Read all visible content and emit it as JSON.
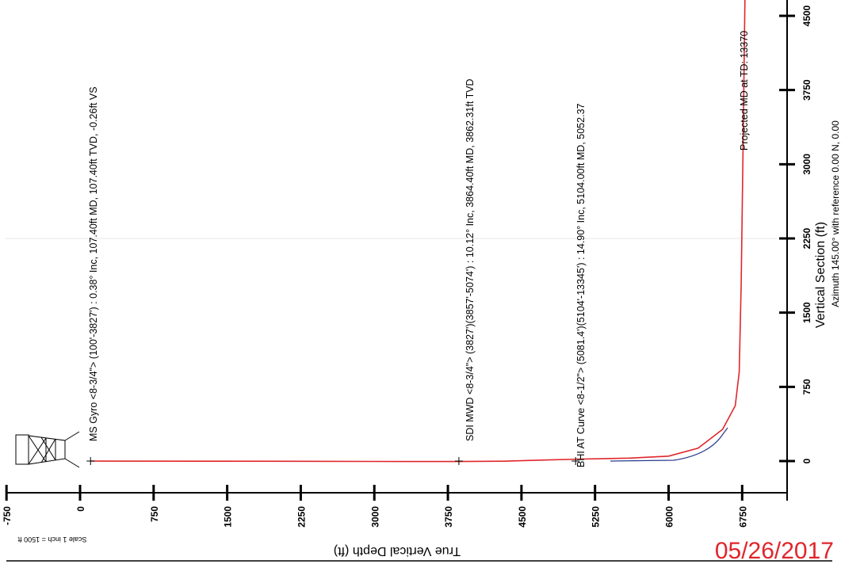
{
  "chart_data": {
    "type": "line",
    "orientation": "rotated-90-ccw",
    "xlabel": "True Vertical Depth (ft)",
    "ylabel": "Vertical Section (ft)",
    "ylabel_sub": "Azimuth 145.00° with reference 0.00 N, 0.00",
    "scale_note": "Scale 1 inch = 1500 ft",
    "x_ticks": [
      -750,
      0,
      750,
      1500,
      2250,
      3000,
      3750,
      4500,
      5250,
      6000,
      6750
    ],
    "x_tick_labels": [
      "-750",
      "0",
      "750",
      "1500",
      "2250",
      "3000",
      "3750",
      "4500",
      "5250",
      "6000",
      "6750"
    ],
    "y_ticks": [
      0,
      750,
      1500,
      2250,
      3000,
      3750,
      4500
    ],
    "y_tick_labels": [
      "0",
      "750",
      "1500",
      "2250",
      "3000",
      "3750",
      "4500"
    ],
    "xlim": [
      -750,
      7000
    ],
    "ylim": [
      -50,
      4850
    ],
    "series": [
      {
        "color": "#e0262b",
        "x": [
          107,
          1500,
          3000,
          3864,
          4300,
          4700,
          5104,
          5600,
          6000,
          6300,
          6550,
          6680,
          6720,
          6740,
          6760,
          6780
        ],
        "y": [
          -0.26,
          -2,
          -4,
          -5,
          -2,
          10,
          20,
          30,
          50,
          130,
          320,
          560,
          900,
          1800,
          3200,
          4800
        ]
      }
    ],
    "annotations": [
      {
        "text": "MS Gyro <8-3/4\"> (100'-3827') : 0.38° Inc, 107.40ft MD, 107.40ft TVD, -0.26ft VS",
        "x": 107,
        "y": 0
      },
      {
        "text": "SDI MWD <8-3/4\"> (3827')(3857'-5074') : 10.12° Inc, 3864.40ft MD, 3862.31ft TVD",
        "x": 3862,
        "y": 0
      },
      {
        "text": "BHI AT Curve <8-1/2\"> (5081.4')(5104'-13345') : 14.90° Inc, 5104.00ft MD, 5052.37",
        "x": 5052,
        "y": 0
      },
      {
        "text": "Projected MD at TD: 13370",
        "x": 6760,
        "y": 2750
      }
    ]
  },
  "date_stamp": "05/26/2017",
  "colors": {
    "curve": "#e0262b",
    "secondary_curve": "#2a3a8c",
    "date_stamp": "#e0262b",
    "axis": "#000000"
  }
}
